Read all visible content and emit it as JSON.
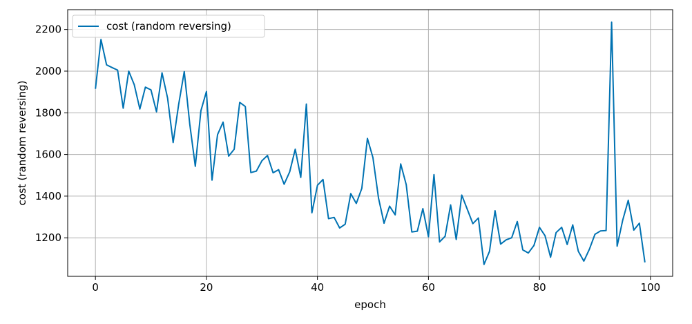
{
  "chart_data": {
    "type": "line",
    "title": "",
    "xlabel": "epoch",
    "ylabel": "cost (random reversing)",
    "xlim": [
      -5,
      104
    ],
    "ylim": [
      1015,
      2295
    ],
    "xticks": [
      0,
      20,
      40,
      60,
      80,
      100
    ],
    "yticks": [
      1200,
      1400,
      1600,
      1800,
      2000,
      2200
    ],
    "grid": true,
    "legend_position": "upper-left",
    "series": [
      {
        "name": "cost (random reversing)",
        "color": "#0072b2",
        "x": [
          0,
          1,
          2,
          3,
          4,
          5,
          6,
          7,
          8,
          9,
          10,
          11,
          12,
          13,
          14,
          15,
          16,
          17,
          18,
          19,
          20,
          21,
          22,
          23,
          24,
          25,
          26,
          27,
          28,
          29,
          30,
          31,
          32,
          33,
          34,
          35,
          36,
          37,
          38,
          39,
          40,
          41,
          42,
          43,
          44,
          45,
          46,
          47,
          48,
          49,
          50,
          51,
          52,
          53,
          54,
          55,
          56,
          57,
          58,
          59,
          60,
          61,
          62,
          63,
          64,
          65,
          66,
          67,
          68,
          69,
          70,
          71,
          72,
          73,
          74,
          75,
          76,
          77,
          78,
          79,
          80,
          81,
          82,
          83,
          84,
          85,
          86,
          87,
          88,
          89,
          90,
          91,
          92,
          93,
          94,
          95,
          96,
          97,
          98,
          99
        ],
        "values": [
          1915,
          2152,
          2030,
          2017,
          2005,
          1822,
          2000,
          1935,
          1818,
          1923,
          1910,
          1805,
          1992,
          1870,
          1657,
          1840,
          1998,
          1745,
          1543,
          1810,
          1902,
          1477,
          1695,
          1755,
          1592,
          1625,
          1850,
          1830,
          1513,
          1520,
          1570,
          1595,
          1512,
          1527,
          1457,
          1517,
          1625,
          1490,
          1842,
          1320,
          1452,
          1480,
          1292,
          1298,
          1247,
          1265,
          1412,
          1365,
          1437,
          1677,
          1585,
          1390,
          1270,
          1352,
          1310,
          1555,
          1455,
          1228,
          1232,
          1340,
          1205,
          1503,
          1180,
          1207,
          1358,
          1192,
          1405,
          1337,
          1268,
          1295,
          1072,
          1135,
          1330,
          1170,
          1190,
          1200,
          1278,
          1142,
          1127,
          1163,
          1250,
          1210,
          1107,
          1225,
          1250,
          1168,
          1262,
          1135,
          1088,
          1145,
          1217,
          1233,
          1235,
          2235,
          1160,
          1285,
          1380,
          1237,
          1270,
          1082
        ]
      }
    ]
  }
}
